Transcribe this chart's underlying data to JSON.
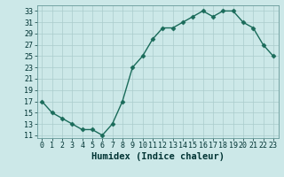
{
  "x": [
    0,
    1,
    2,
    3,
    4,
    5,
    6,
    7,
    8,
    9,
    10,
    11,
    12,
    13,
    14,
    15,
    16,
    17,
    18,
    19,
    20,
    21,
    22,
    23
  ],
  "y": [
    17,
    15,
    14,
    13,
    12,
    12,
    11,
    13,
    17,
    23,
    25,
    28,
    30,
    30,
    31,
    32,
    33,
    32,
    33,
    33,
    31,
    30,
    27,
    25
  ],
  "line_color": "#1a6b5a",
  "marker_color": "#1a6b5a",
  "bg_color": "#cce8e8",
  "grid_color": "#aacccc",
  "xlabel": "Humidex (Indice chaleur)",
  "ylim": [
    10.5,
    34
  ],
  "xlim": [
    -0.5,
    23.5
  ],
  "yticks": [
    11,
    13,
    15,
    17,
    19,
    21,
    23,
    25,
    27,
    29,
    31,
    33
  ],
  "xticks": [
    0,
    1,
    2,
    3,
    4,
    5,
    6,
    7,
    8,
    9,
    10,
    11,
    12,
    13,
    14,
    15,
    16,
    17,
    18,
    19,
    20,
    21,
    22,
    23
  ],
  "marker_size": 2.5,
  "line_width": 1.0,
  "tick_fontsize": 6.0,
  "xlabel_fontsize": 7.5
}
